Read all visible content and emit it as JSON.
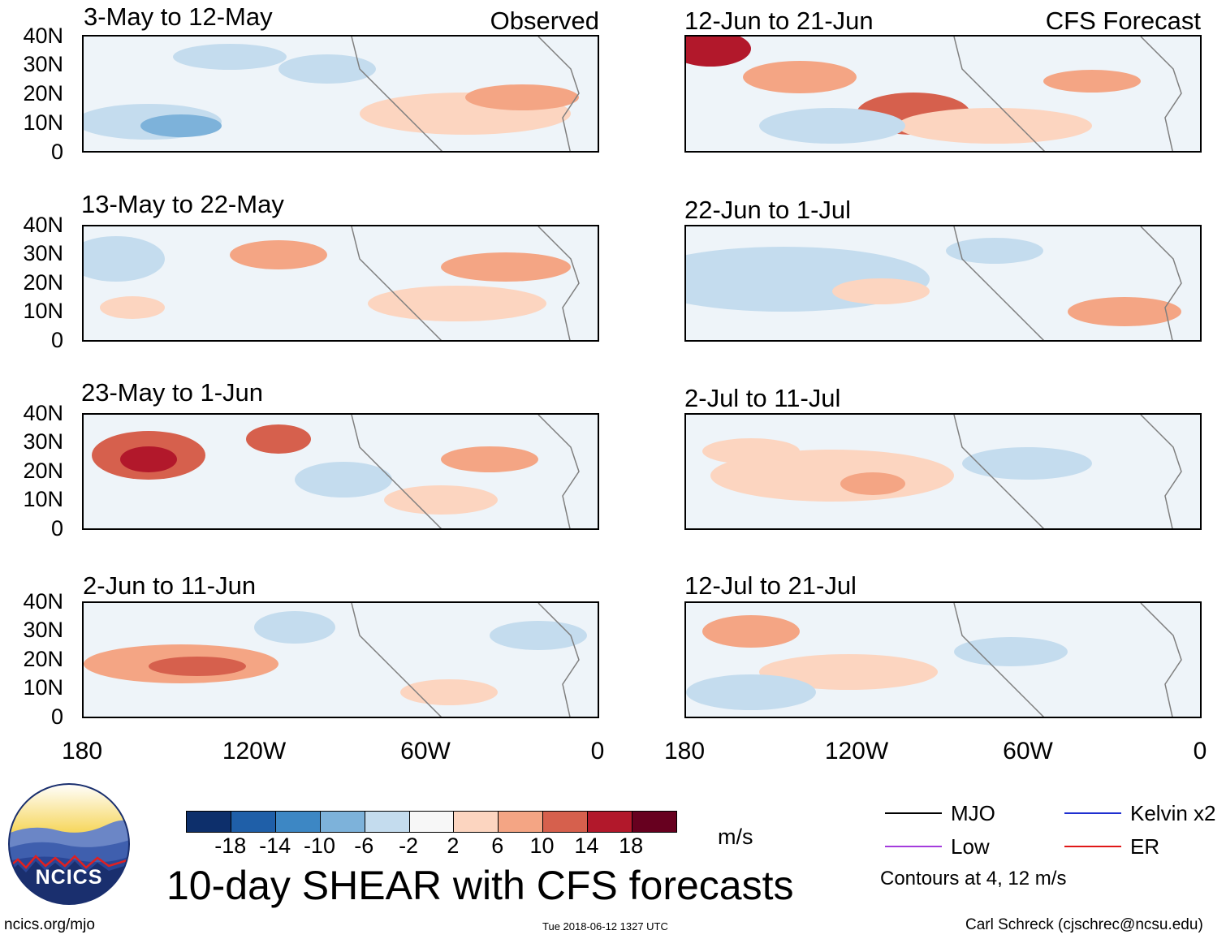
{
  "header": {
    "observed_label": "Observed",
    "forecast_label": "CFS Forecast"
  },
  "axes": {
    "lat_ticks": [
      "40N",
      "30N",
      "20N",
      "10N",
      "0"
    ],
    "lon_ticks": [
      "180",
      "120W",
      "60W",
      "0"
    ]
  },
  "panels": [
    {
      "title": "3-May to 12-May",
      "column": "observed",
      "row": 0
    },
    {
      "title": "13-May to 22-May",
      "column": "observed",
      "row": 1
    },
    {
      "title": "23-May to 1-Jun",
      "column": "observed",
      "row": 2
    },
    {
      "title": "2-Jun to 11-Jun",
      "column": "observed",
      "row": 3
    },
    {
      "title": "12-Jun to 21-Jun",
      "column": "forecast",
      "row": 0
    },
    {
      "title": "22-Jun to 1-Jul",
      "column": "forecast",
      "row": 1
    },
    {
      "title": "2-Jul to 11-Jul",
      "column": "forecast",
      "row": 2
    },
    {
      "title": "12-Jul to 21-Jul",
      "column": "forecast",
      "row": 3
    }
  ],
  "colorbar": {
    "labels": [
      "-18",
      "-14",
      "-10",
      "-6",
      "-2",
      "2",
      "6",
      "10",
      "14",
      "18"
    ],
    "colors": [
      "#0d2f6b",
      "#1f5fa8",
      "#3d87c4",
      "#7db2da",
      "#c4dcee",
      "#f7f7f7",
      "#fcd5c0",
      "#f4a584",
      "#d6604d",
      "#b2182b",
      "#67001f"
    ],
    "units": "m/s"
  },
  "main_title": "10-day SHEAR with CFS forecasts",
  "legend": {
    "items": [
      {
        "label": "MJO",
        "color": "#000000"
      },
      {
        "label": "Kelvin x2",
        "color": "#1f2fd0"
      },
      {
        "label": "Low",
        "color": "#a43cdc"
      },
      {
        "label": "ER",
        "color": "#e01818"
      }
    ],
    "note": "Contours at 4, 12 m/s"
  },
  "logo": {
    "text": "NCICS"
  },
  "footer": {
    "url": "ncics.org/mjo",
    "timestamp": "Tue 2018-06-12 1327 UTC",
    "author": "Carl Schreck (cjschrec@ncsu.edu)"
  }
}
